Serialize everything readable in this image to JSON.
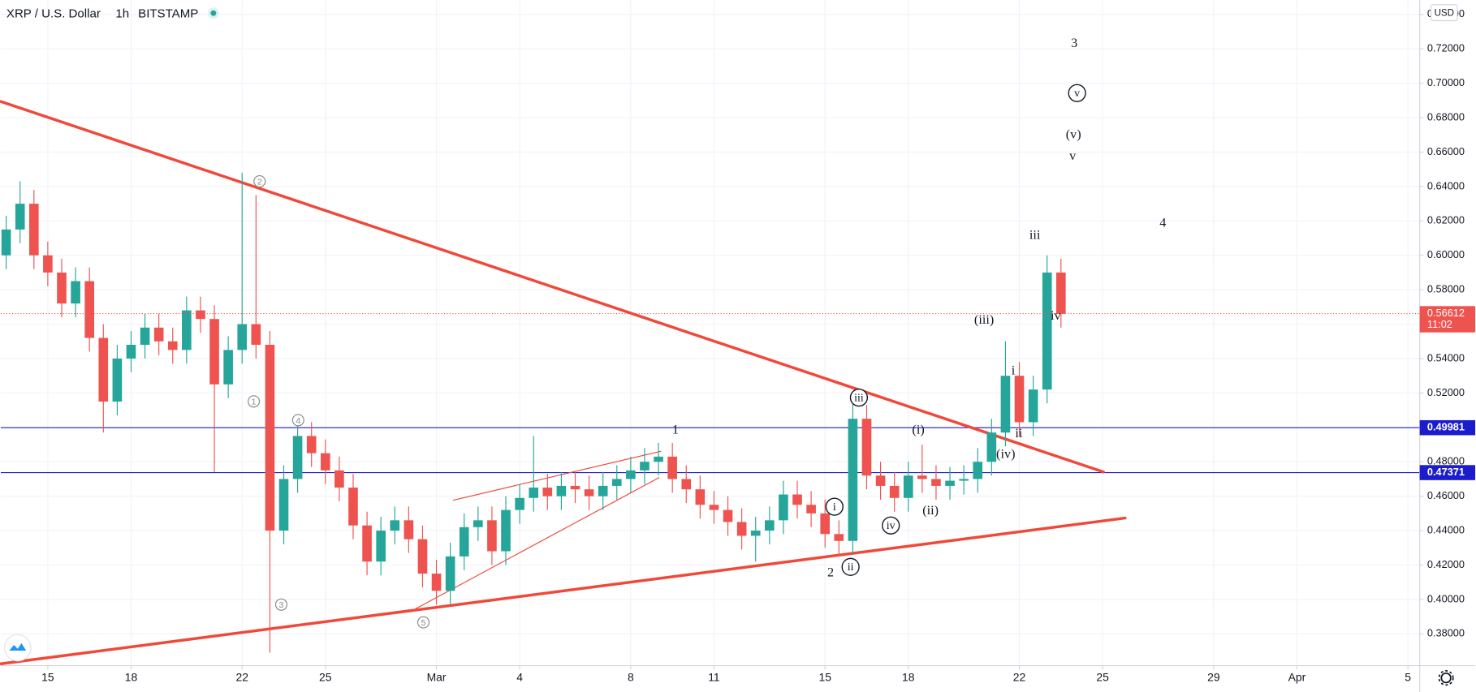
{
  "chart_data": {
    "type": "candlestick",
    "title": "XRP / U.S. Dollar",
    "interval": "1h",
    "exchange": "BITSTAMP",
    "currency": "USD",
    "x": [
      13.5,
      14,
      14.5,
      15,
      15.5,
      16,
      16.5,
      17,
      17.5,
      18,
      18.5,
      19,
      19.5,
      20,
      20.5,
      21,
      21.5,
      22,
      22.5,
      23,
      23.5,
      24,
      24.5,
      25,
      25.5,
      26,
      26.5,
      27,
      27.5,
      28,
      28.5,
      29,
      29.5,
      30,
      30.5,
      31,
      31.5,
      32,
      32.5,
      33,
      33.5,
      34,
      34.5,
      35,
      35.5,
      36,
      36.5,
      37,
      37.5,
      38,
      38.5,
      39,
      39.5,
      40,
      40.5,
      41,
      41.5,
      42,
      42.5,
      43,
      43.5,
      44,
      44.5,
      45,
      45.5,
      46,
      46.5,
      47,
      47.5,
      48,
      48.5,
      49,
      49.5,
      50,
      50.5,
      51,
      51.5
    ],
    "open": [
      0.6,
      0.615,
      0.63,
      0.6,
      0.59,
      0.572,
      0.585,
      0.552,
      0.515,
      0.54,
      0.548,
      0.558,
      0.55,
      0.545,
      0.568,
      0.563,
      0.525,
      0.545,
      0.56,
      0.548,
      0.44,
      0.47,
      0.495,
      0.485,
      0.475,
      0.465,
      0.443,
      0.422,
      0.44,
      0.446,
      0.435,
      0.415,
      0.405,
      0.425,
      0.442,
      0.446,
      0.428,
      0.452,
      0.459,
      0.465,
      0.46,
      0.466,
      0.464,
      0.46,
      0.466,
      0.47,
      0.475,
      0.48,
      0.483,
      0.47,
      0.464,
      0.455,
      0.452,
      0.445,
      0.437,
      0.44,
      0.446,
      0.461,
      0.455,
      0.45,
      0.438,
      0.434,
      0.505,
      0.472,
      0.466,
      0.459,
      0.472,
      0.47,
      0.466,
      0.469,
      0.47,
      0.48,
      0.497,
      0.53,
      0.503,
      0.522,
      0.59
    ],
    "high": [
      0.623,
      0.643,
      0.638,
      0.608,
      0.598,
      0.593,
      0.593,
      0.56,
      0.548,
      0.556,
      0.566,
      0.566,
      0.558,
      0.576,
      0.576,
      0.571,
      0.553,
      0.648,
      0.635,
      0.556,
      0.478,
      0.503,
      0.503,
      0.493,
      0.483,
      0.473,
      0.451,
      0.448,
      0.454,
      0.454,
      0.443,
      0.423,
      0.433,
      0.45,
      0.454,
      0.454,
      0.46,
      0.467,
      0.495,
      0.473,
      0.474,
      0.474,
      0.472,
      0.474,
      0.478,
      0.483,
      0.488,
      0.491,
      0.491,
      0.478,
      0.472,
      0.463,
      0.46,
      0.453,
      0.448,
      0.454,
      0.469,
      0.469,
      0.463,
      0.458,
      0.446,
      0.52,
      0.513,
      0.48,
      0.474,
      0.48,
      0.49,
      0.478,
      0.477,
      0.478,
      0.488,
      0.505,
      0.55,
      0.538,
      0.53,
      0.6,
      0.598
    ],
    "low": [
      0.592,
      0.607,
      0.592,
      0.582,
      0.564,
      0.564,
      0.544,
      0.497,
      0.507,
      0.532,
      0.54,
      0.542,
      0.537,
      0.537,
      0.555,
      0.474,
      0.517,
      0.537,
      0.54,
      0.369,
      0.432,
      0.462,
      0.477,
      0.467,
      0.457,
      0.435,
      0.414,
      0.414,
      0.432,
      0.427,
      0.407,
      0.397,
      0.397,
      0.417,
      0.434,
      0.42,
      0.42,
      0.444,
      0.451,
      0.452,
      0.452,
      0.456,
      0.452,
      0.452,
      0.458,
      0.462,
      0.467,
      0.472,
      0.462,
      0.456,
      0.447,
      0.444,
      0.437,
      0.429,
      0.422,
      0.432,
      0.438,
      0.447,
      0.442,
      0.43,
      0.425,
      0.426,
      0.464,
      0.458,
      0.451,
      0.451,
      0.462,
      0.458,
      0.458,
      0.461,
      0.462,
      0.472,
      0.489,
      0.495,
      0.495,
      0.514,
      0.558
    ],
    "close": [
      0.615,
      0.63,
      0.6,
      0.59,
      0.572,
      0.585,
      0.552,
      0.515,
      0.54,
      0.548,
      0.558,
      0.55,
      0.545,
      0.568,
      0.563,
      0.525,
      0.545,
      0.56,
      0.548,
      0.44,
      0.47,
      0.495,
      0.485,
      0.475,
      0.465,
      0.443,
      0.422,
      0.44,
      0.446,
      0.435,
      0.415,
      0.405,
      0.425,
      0.442,
      0.446,
      0.428,
      0.452,
      0.459,
      0.465,
      0.46,
      0.466,
      0.464,
      0.46,
      0.466,
      0.47,
      0.475,
      0.48,
      0.483,
      0.47,
      0.464,
      0.455,
      0.452,
      0.445,
      0.437,
      0.44,
      0.446,
      0.461,
      0.455,
      0.45,
      0.438,
      0.434,
      0.505,
      0.472,
      0.466,
      0.459,
      0.472,
      0.47,
      0.466,
      0.469,
      0.47,
      0.48,
      0.497,
      0.53,
      0.503,
      0.522,
      0.59,
      0.566
    ],
    "up_color": "#26a69a",
    "down_color": "#ef5350",
    "xlim": [
      13.305,
      64.424
    ],
    "xticks": [
      {
        "value": 15,
        "label": "15"
      },
      {
        "value": 18,
        "label": "18"
      },
      {
        "value": 22,
        "label": "22"
      },
      {
        "value": 25,
        "label": "25"
      },
      {
        "value": 29,
        "label": "Mar"
      },
      {
        "value": 32,
        "label": "4"
      },
      {
        "value": 36,
        "label": "8"
      },
      {
        "value": 39,
        "label": "11"
      },
      {
        "value": 43,
        "label": "15"
      },
      {
        "value": 46,
        "label": "18"
      },
      {
        "value": 50,
        "label": "22"
      },
      {
        "value": 53,
        "label": "25"
      },
      {
        "value": 57,
        "label": "29"
      },
      {
        "value": 60,
        "label": "Apr"
      },
      {
        "value": 64,
        "label": "5"
      }
    ],
    "ylim": [
      0.3615,
      0.7484
    ],
    "yticks": [
      {
        "value": 0.38,
        "label": "0.38000"
      },
      {
        "value": 0.4,
        "label": "0.40000"
      },
      {
        "value": 0.42,
        "label": "0.42000"
      },
      {
        "value": 0.44,
        "label": "0.44000"
      },
      {
        "value": 0.46,
        "label": "0.46000"
      },
      {
        "value": 0.48,
        "label": "0.48000"
      },
      {
        "value": 0.5,
        "label": "0.50000"
      },
      {
        "value": 0.52,
        "label": "0.52000"
      },
      {
        "value": 0.54,
        "label": "0.54000"
      },
      {
        "value": 0.56,
        "label": "0.56000"
      },
      {
        "value": 0.58,
        "label": "0.58000"
      },
      {
        "value": 0.6,
        "label": "0.60000"
      },
      {
        "value": 0.62,
        "label": "0.62000"
      },
      {
        "value": 0.64,
        "label": "0.64000"
      },
      {
        "value": 0.66,
        "label": "0.66000"
      },
      {
        "value": 0.68,
        "label": "0.68000"
      },
      {
        "value": 0.7,
        "label": "0.70000"
      },
      {
        "value": 0.72,
        "label": "0.72000"
      },
      {
        "value": 0.74,
        "label": "0.74000"
      }
    ],
    "grid": true,
    "last_price": {
      "value": 0.56612,
      "countdown": "11:02",
      "color": "#ef5350"
    },
    "levels": [
      {
        "value": 0.49981,
        "color": "#1c1ccf"
      },
      {
        "value": 0.47371,
        "color": "#1c1ccf"
      }
    ],
    "trendlines": [
      {
        "x": [
          13.305,
          53.03
        ],
        "y": [
          0.6894,
          0.4741
        ],
        "color": "#f0493a",
        "style": "thick"
      },
      {
        "x": [
          13.305,
          53.81
        ],
        "y": [
          0.3626,
          0.4473
        ],
        "color": "#f0493a",
        "style": "thick"
      },
      {
        "x": [
          29.61,
          37.08
        ],
        "y": [
          0.4577,
          0.4861
        ],
        "color": "#f0493a",
        "style": "thin"
      },
      {
        "x": [
          28.22,
          37.02
        ],
        "y": [
          0.3943,
          0.4708
        ],
        "color": "#f0493a",
        "style": "thin"
      }
    ],
    "annotations": [
      {
        "text": "3",
        "x": 51.98,
        "y": 0.7227,
        "style": "plain"
      },
      {
        "text": "v",
        "x": 52.08,
        "y": 0.6943,
        "style": "circle"
      },
      {
        "text": "(v)",
        "x": 51.95,
        "y": 0.6697,
        "style": "plain"
      },
      {
        "text": "v",
        "x": 51.92,
        "y": 0.6572,
        "style": "plain"
      },
      {
        "text": "4",
        "x": 55.17,
        "y": 0.6184,
        "style": "plain"
      },
      {
        "text": "iii",
        "x": 50.56,
        "y": 0.6113,
        "style": "plain"
      },
      {
        "text": "(iii)",
        "x": 48.73,
        "y": 0.5621,
        "style": "plain"
      },
      {
        "text": "i",
        "x": 49.78,
        "y": 0.5326,
        "style": "plain"
      },
      {
        "text": "iv",
        "x": 51.31,
        "y": 0.5643,
        "style": "plain"
      },
      {
        "text": "ii",
        "x": 49.98,
        "y": 0.496,
        "style": "plain"
      },
      {
        "text": "(iv)",
        "x": 49.51,
        "y": 0.4839,
        "style": "plain"
      },
      {
        "text": "1",
        "x": 37.61,
        "y": 0.4981,
        "style": "plain"
      },
      {
        "text": "2",
        "x": 43.2,
        "y": 0.4151,
        "style": "plain"
      },
      {
        "text": "(i)",
        "x": 46.36,
        "y": 0.4981,
        "style": "plain"
      },
      {
        "text": "(ii)",
        "x": 46.8,
        "y": 0.4511,
        "style": "plain"
      },
      {
        "text": "iii",
        "x": 44.22,
        "y": 0.5173,
        "style": "circle"
      },
      {
        "text": "i",
        "x": 43.34,
        "y": 0.4539,
        "style": "circle"
      },
      {
        "text": "ii",
        "x": 43.92,
        "y": 0.4189,
        "style": "circle"
      },
      {
        "text": "iv",
        "x": 45.37,
        "y": 0.443,
        "style": "circle"
      },
      {
        "text": "2",
        "x": 22.63,
        "y": 0.643,
        "style": "circle-small"
      },
      {
        "text": "1",
        "x": 22.42,
        "y": 0.5151,
        "style": "circle-small"
      },
      {
        "text": "4",
        "x": 24.02,
        "y": 0.5042,
        "style": "circle-small"
      },
      {
        "text": "3",
        "x": 23.41,
        "y": 0.397,
        "style": "circle-small"
      },
      {
        "text": "5",
        "x": 28.53,
        "y": 0.3867,
        "style": "circle-small"
      }
    ]
  }
}
